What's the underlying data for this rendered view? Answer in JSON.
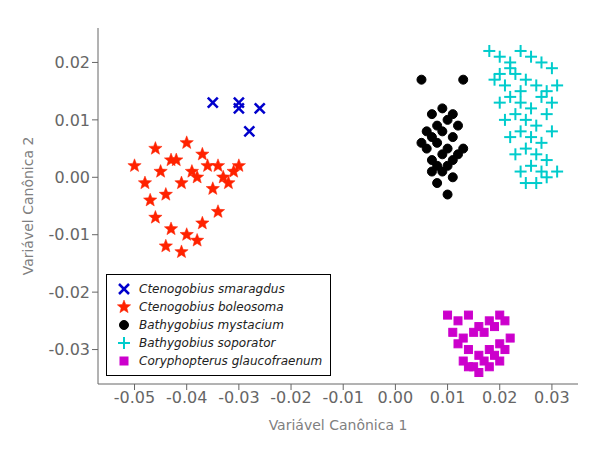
{
  "chart_data": {
    "type": "scatter",
    "xlabel": "Variável Canônica 1",
    "ylabel": "Variável Canônica 2",
    "xlim": [
      -0.057,
      0.035
    ],
    "ylim": [
      -0.036,
      0.026
    ],
    "xticks": [
      -0.05,
      -0.04,
      -0.03,
      -0.02,
      -0.01,
      {
        "value": 0,
        "label": "0.00"
      },
      0.01,
      0.02,
      0.03
    ],
    "yticks": [
      -0.03,
      -0.02,
      -0.01,
      {
        "value": 0,
        "label": "0.00"
      },
      0.01,
      0.02
    ],
    "grid": false,
    "legend": "lower left",
    "series": [
      {
        "name": "Ctenogobius smaragdus",
        "color": "#0000CC",
        "marker": "x",
        "x": [
          -0.035,
          -0.03,
          -0.028,
          -0.026,
          -0.03
        ],
        "values": [
          0.013,
          0.013,
          0.008,
          0.012,
          0.012
        ]
      },
      {
        "name": "Ctenogobius boleosoma",
        "color": "#FF2200",
        "marker": "*",
        "x": [
          -0.05,
          -0.046,
          -0.043,
          -0.04,
          -0.037,
          -0.034,
          -0.031,
          -0.048,
          -0.045,
          -0.042,
          -0.039,
          -0.036,
          -0.033,
          -0.03,
          -0.047,
          -0.044,
          -0.041,
          -0.038,
          -0.035,
          -0.032,
          -0.046,
          -0.043,
          -0.04,
          -0.037,
          -0.034,
          -0.044,
          -0.041,
          -0.038
        ],
        "values": [
          0.002,
          0.005,
          0.003,
          0.006,
          0.004,
          0.002,
          0.001,
          -0.001,
          0.001,
          0.003,
          0.001,
          0.002,
          0.0,
          0.002,
          -0.004,
          -0.003,
          -0.001,
          0.0,
          -0.002,
          -0.001,
          -0.007,
          -0.009,
          -0.01,
          -0.008,
          -0.006,
          -0.012,
          -0.013,
          -0.011
        ]
      },
      {
        "name": "Bathygobius mystacium",
        "color": "#000000",
        "marker": "o",
        "x": [
          0.005,
          0.007,
          0.009,
          0.011,
          0.013,
          0.006,
          0.008,
          0.01,
          0.012,
          0.005,
          0.007,
          0.009,
          0.011,
          0.013,
          0.006,
          0.008,
          0.01,
          0.012,
          0.007,
          0.009,
          0.011,
          0.008,
          0.01,
          0.007,
          0.009,
          0.011,
          0.008,
          0.01
        ],
        "values": [
          0.017,
          0.011,
          0.012,
          0.011,
          0.017,
          0.008,
          0.009,
          0.01,
          0.009,
          0.006,
          0.007,
          0.008,
          0.007,
          0.005,
          0.005,
          0.006,
          0.005,
          0.004,
          0.003,
          0.004,
          0.003,
          0.002,
          0.002,
          0.001,
          0.001,
          0.0,
          -0.001,
          -0.003
        ]
      },
      {
        "name": "Bathygobius soporator",
        "color": "#00CCCC",
        "marker": "+",
        "x": [
          0.018,
          0.02,
          0.022,
          0.024,
          0.026,
          0.028,
          0.03,
          0.019,
          0.021,
          0.023,
          0.025,
          0.027,
          0.029,
          0.031,
          0.02,
          0.022,
          0.024,
          0.026,
          0.028,
          0.03,
          0.021,
          0.023,
          0.025,
          0.027,
          0.029,
          0.022,
          0.024,
          0.026,
          0.028,
          0.03,
          0.023,
          0.025,
          0.027,
          0.029,
          0.024,
          0.026,
          0.028,
          0.025,
          0.027,
          0.029,
          0.031,
          0.02,
          0.022,
          0.024
        ],
        "values": [
          0.022,
          0.021,
          0.02,
          0.022,
          0.021,
          0.02,
          0.019,
          0.017,
          0.016,
          0.018,
          0.017,
          0.016,
          0.015,
          0.016,
          0.013,
          0.014,
          0.013,
          0.012,
          0.014,
          0.013,
          0.01,
          0.011,
          0.01,
          0.009,
          0.011,
          0.007,
          0.008,
          0.007,
          0.006,
          0.008,
          0.004,
          0.005,
          0.004,
          0.003,
          0.001,
          0.002,
          0.001,
          -0.001,
          -0.001,
          0.0,
          0.001,
          0.018,
          0.019,
          0.015
        ]
      },
      {
        "name": "Coryphopterus glaucofraenum",
        "color": "#CC00CC",
        "marker": "s",
        "x": [
          0.01,
          0.012,
          0.014,
          0.016,
          0.018,
          0.02,
          0.011,
          0.013,
          0.015,
          0.017,
          0.019,
          0.021,
          0.012,
          0.014,
          0.016,
          0.018,
          0.02,
          0.022,
          0.013,
          0.015,
          0.017,
          0.019,
          0.021,
          0.014,
          0.016,
          0.018,
          0.02
        ],
        "values": [
          -0.024,
          -0.025,
          -0.024,
          -0.026,
          -0.025,
          -0.024,
          -0.027,
          -0.028,
          -0.027,
          -0.027,
          -0.026,
          -0.025,
          -0.029,
          -0.03,
          -0.031,
          -0.03,
          -0.029,
          -0.028,
          -0.032,
          -0.033,
          -0.032,
          -0.031,
          -0.03,
          -0.033,
          -0.034,
          -0.033,
          -0.032
        ]
      }
    ]
  }
}
